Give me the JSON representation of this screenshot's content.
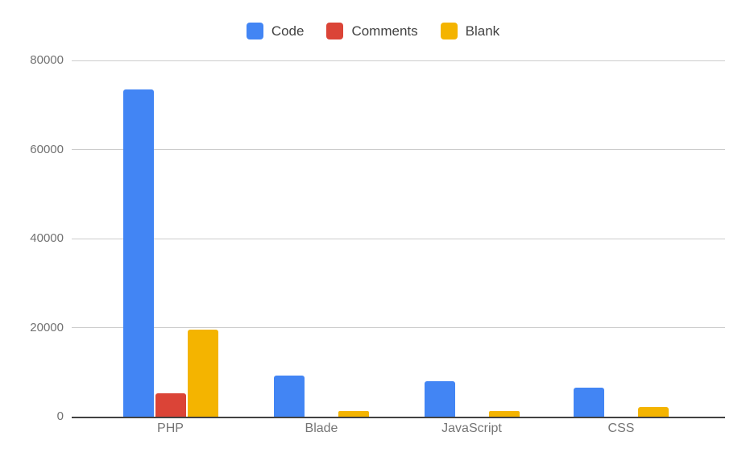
{
  "chart_data": {
    "type": "bar",
    "title": "",
    "xlabel": "",
    "ylabel": "",
    "categories": [
      "PHP",
      "Blade",
      "JavaScript",
      "CSS"
    ],
    "series": [
      {
        "name": "Code",
        "color": "#4285F4",
        "values": [
          73500,
          9200,
          8000,
          6500
        ]
      },
      {
        "name": "Comments",
        "color": "#DB4437",
        "values": [
          5200,
          0,
          0,
          0
        ]
      },
      {
        "name": "Blank",
        "color": "#F4B400",
        "values": [
          19500,
          1300,
          1200,
          2100
        ]
      }
    ],
    "ylim": [
      0,
      80000
    ],
    "yticks": [
      0,
      20000,
      40000,
      60000,
      80000
    ],
    "grid": true,
    "legend_position": "top"
  },
  "legend": {
    "items": [
      {
        "label": "Code",
        "color": "#4285F4"
      },
      {
        "label": "Comments",
        "color": "#DB4437"
      },
      {
        "label": "Blank",
        "color": "#F4B400"
      }
    ]
  },
  "colors": {
    "background": "#ffffff",
    "gridline": "#cccccc",
    "axis_baseline": "#424242",
    "ytick_label": "#717171",
    "category_label": "#757575",
    "legend_text": "#424242"
  }
}
